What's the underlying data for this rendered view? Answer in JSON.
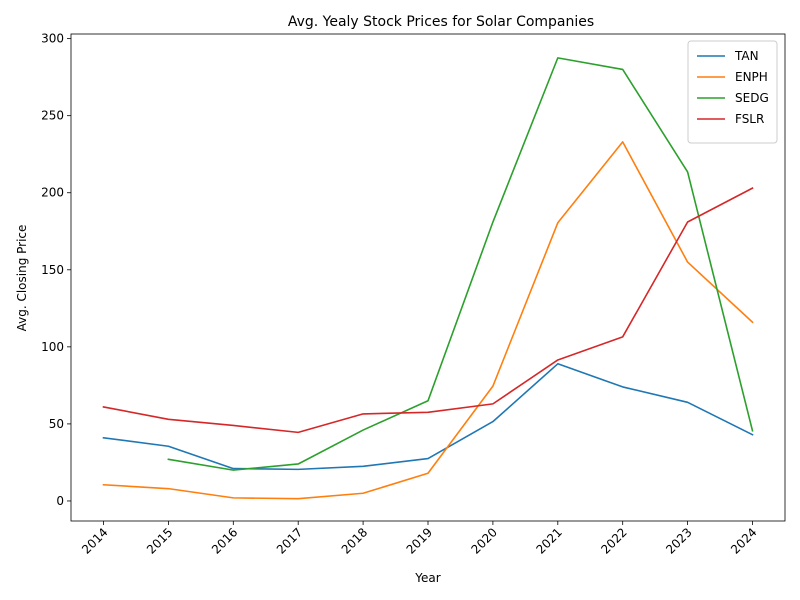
{
  "chart_data": {
    "type": "line",
    "title": "Avg. Yealy Stock Prices for Solar Companies",
    "xlabel": "Year",
    "ylabel": "Avg. Closing Price",
    "categories": [
      "2014",
      "2015",
      "2016",
      "2017",
      "2018",
      "2019",
      "2020",
      "2021",
      "2022",
      "2023",
      "2024"
    ],
    "ylim": [
      -13,
      303
    ],
    "yticks": [
      0,
      50,
      100,
      150,
      200,
      250,
      300
    ],
    "grid": false,
    "legend_position": "top-right",
    "series": [
      {
        "name": "TAN",
        "color": "#1f77b4",
        "values": [
          41,
          35.5,
          21,
          20.5,
          22.5,
          27.5,
          51.5,
          89,
          74,
          64,
          43
        ]
      },
      {
        "name": "ENPH",
        "color": "#ff7f0e",
        "values": [
          10.5,
          8,
          2,
          1.5,
          5,
          18,
          74.5,
          180.5,
          233,
          155,
          116
        ]
      },
      {
        "name": "SEDG",
        "color": "#2ca02c",
        "values": [
          null,
          27,
          20,
          24,
          46,
          65,
          181,
          287.5,
          280,
          213.5,
          45.5
        ]
      },
      {
        "name": "FSLR",
        "color": "#d62728",
        "values": [
          61,
          53,
          49,
          44.5,
          56.5,
          57.5,
          63,
          91.5,
          106.5,
          181,
          203
        ]
      }
    ]
  }
}
